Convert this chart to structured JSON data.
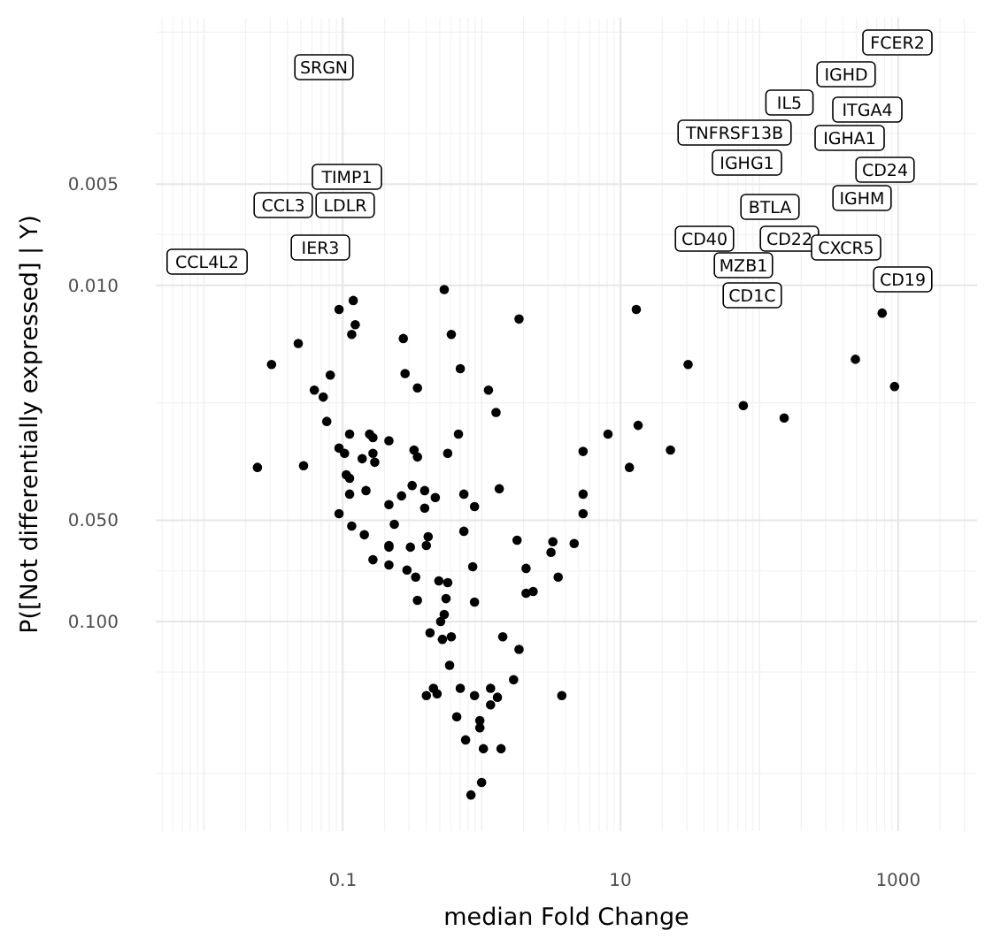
{
  "chart_data": {
    "type": "scatter",
    "xlabel": "median Fold Change",
    "ylabel": "P([Not differentially expressed] | Y)",
    "log": "xy",
    "grid": true,
    "marker": "circle",
    "xlim": [
      0.0045,
      3700
    ],
    "xticks": [
      0.1,
      10,
      1000
    ],
    "ylim": [
      0.42,
      0.0016
    ],
    "yticks": [
      {
        "value": 0.005,
        "label": "0.005"
      },
      {
        "value": 0.01,
        "label": "0.010"
      },
      {
        "value": 0.05,
        "label": "0.050"
      },
      {
        "value": 0.1,
        "label": "0.100"
      }
    ],
    "series": [
      {
        "color": "#000000",
        "x": [
          0.538,
          0.094,
          0.119,
          0.123,
          0.116,
          0.0478,
          0.0307,
          0.273,
          0.605,
          1.86,
          13.0,
          0.281,
          0.702,
          0.0813,
          0.0624,
          0.0723,
          0.345,
          1.12,
          1.27,
          0.0767,
          0.112,
          0.156,
          0.165,
          0.215,
          0.681,
          8.13,
          13.4,
          0.0243,
          0.0522,
          0.094,
          0.103,
          0.138,
          0.165,
          0.17,
          0.326,
          0.345,
          0.57,
          5.38,
          11.6,
          22.9,
          0.106,
          0.112,
          0.112,
          0.147,
          0.265,
          0.316,
          0.389,
          0.464,
          0.745,
          1.34,
          5.38,
          0.215,
          0.389,
          0.889,
          5.38,
          0.094,
          0.116,
          0.235,
          0.143,
          0.412,
          0.4,
          0.745,
          0.215,
          0.215,
          0.307,
          1.8,
          3.26,
          3.16,
          4.64,
          0.165,
          0.215,
          0.29,
          0.335,
          0.492,
          0.57,
          0.863,
          2.09,
          3.56,
          0.345,
          0.554,
          0.889,
          2.09,
          2.35,
          0.538,
          0.507,
          0.425,
          0.522,
          0.605,
          1.42,
          1.86,
          0.588,
          1.7,
          0.45,
          0.4,
          0.478,
          0.702,
          0.889,
          1.16,
          1.3,
          1.16,
          3.78,
          0.662,
          0.971,
          0.971,
          0.767,
          1.03,
          1.38,
          1.0,
          0.838,
          767,
          30.7,
          492,
          942,
          76.7,
          151
        ],
        "values": [
          0.0103,
          0.0118,
          0.0111,
          0.0131,
          0.014,
          0.0149,
          0.0172,
          0.0144,
          0.014,
          0.0126,
          0.0118,
          0.0183,
          0.0177,
          0.0185,
          0.0205,
          0.0215,
          0.0202,
          0.0205,
          0.0239,
          0.0254,
          0.0277,
          0.0277,
          0.0284,
          0.029,
          0.0277,
          0.0277,
          0.0261,
          0.0348,
          0.0344,
          0.0305,
          0.0316,
          0.0328,
          0.0316,
          0.0336,
          0.0309,
          0.0324,
          0.0316,
          0.0312,
          0.0348,
          0.0309,
          0.0366,
          0.0375,
          0.0418,
          0.0408,
          0.0423,
          0.0394,
          0.0408,
          0.0428,
          0.0418,
          0.0403,
          0.0418,
          0.0449,
          0.046,
          0.0455,
          0.0478,
          0.0478,
          0.052,
          0.0514,
          0.0552,
          0.0559,
          0.0594,
          0.0539,
          0.0594,
          0.0601,
          0.0601,
          0.0573,
          0.0579,
          0.0623,
          0.0586,
          0.0655,
          0.0679,
          0.0703,
          0.0738,
          0.0757,
          0.0766,
          0.0687,
          0.0695,
          0.0738,
          0.0865,
          0.0855,
          0.0875,
          0.0824,
          0.0814,
          0.0953,
          0.1,
          0.108,
          0.113,
          0.111,
          0.111,
          0.121,
          0.135,
          0.149,
          0.158,
          0.166,
          0.164,
          0.158,
          0.166,
          0.158,
          0.168,
          0.177,
          0.166,
          0.192,
          0.197,
          0.207,
          0.225,
          0.239,
          0.239,
          0.301,
          0.328,
          0.0121,
          0.0172,
          0.0166,
          0.02,
          0.0228,
          0.0248
        ]
      }
    ],
    "annotations": [
      "SRGN",
      "TIMP1",
      "CCL3",
      "LDLR",
      "IER3",
      "CCL4L2",
      "FCER2",
      "IGHD",
      "ITGA4",
      "IL5",
      "TNFRSF13B",
      "IGHA1",
      "IGHG1",
      "CD24",
      "IGHM",
      "BTLA",
      "CD40",
      "CD22",
      "MZB1",
      "CD1C",
      "CXCR5",
      "CD19"
    ]
  }
}
